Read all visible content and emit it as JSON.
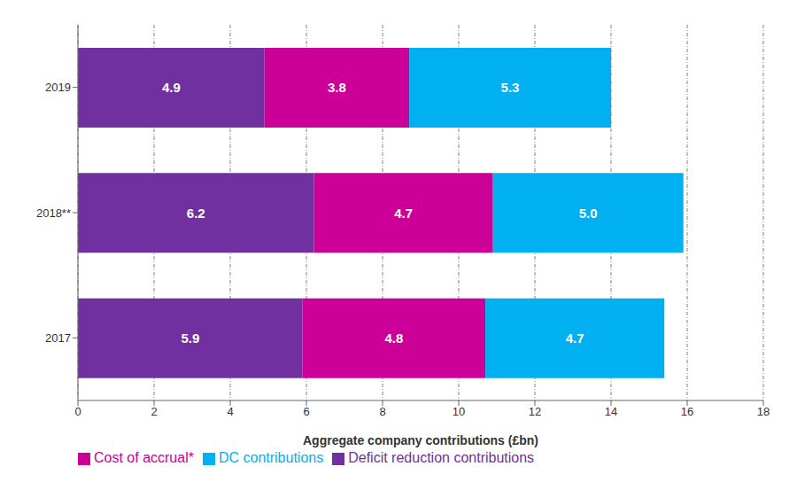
{
  "chart_data": {
    "type": "bar",
    "orientation": "horizontal",
    "stacked": true,
    "categories": [
      "2019",
      "2018**",
      "2017"
    ],
    "series": [
      {
        "name": "Deficit reduction contributions",
        "color": "#7030a0",
        "values": [
          4.9,
          6.2,
          5.9
        ]
      },
      {
        "name": "Cost of accrual*",
        "color": "#cc0099",
        "values": [
          3.8,
          4.7,
          4.8
        ]
      },
      {
        "name": "DC contributions",
        "color": "#00b0f0",
        "values": [
          5.3,
          5.0,
          4.7
        ],
        "value_labels": [
          "5.3",
          "5.0",
          "4.7"
        ]
      }
    ],
    "xlabel": "Aggregate company contributions (£bn)",
    "xlim": [
      0,
      18
    ],
    "xticks": [
      0,
      2,
      4,
      6,
      8,
      10,
      12,
      14,
      16,
      18
    ],
    "grid": true,
    "data_labels": true,
    "legend": "lower left"
  }
}
